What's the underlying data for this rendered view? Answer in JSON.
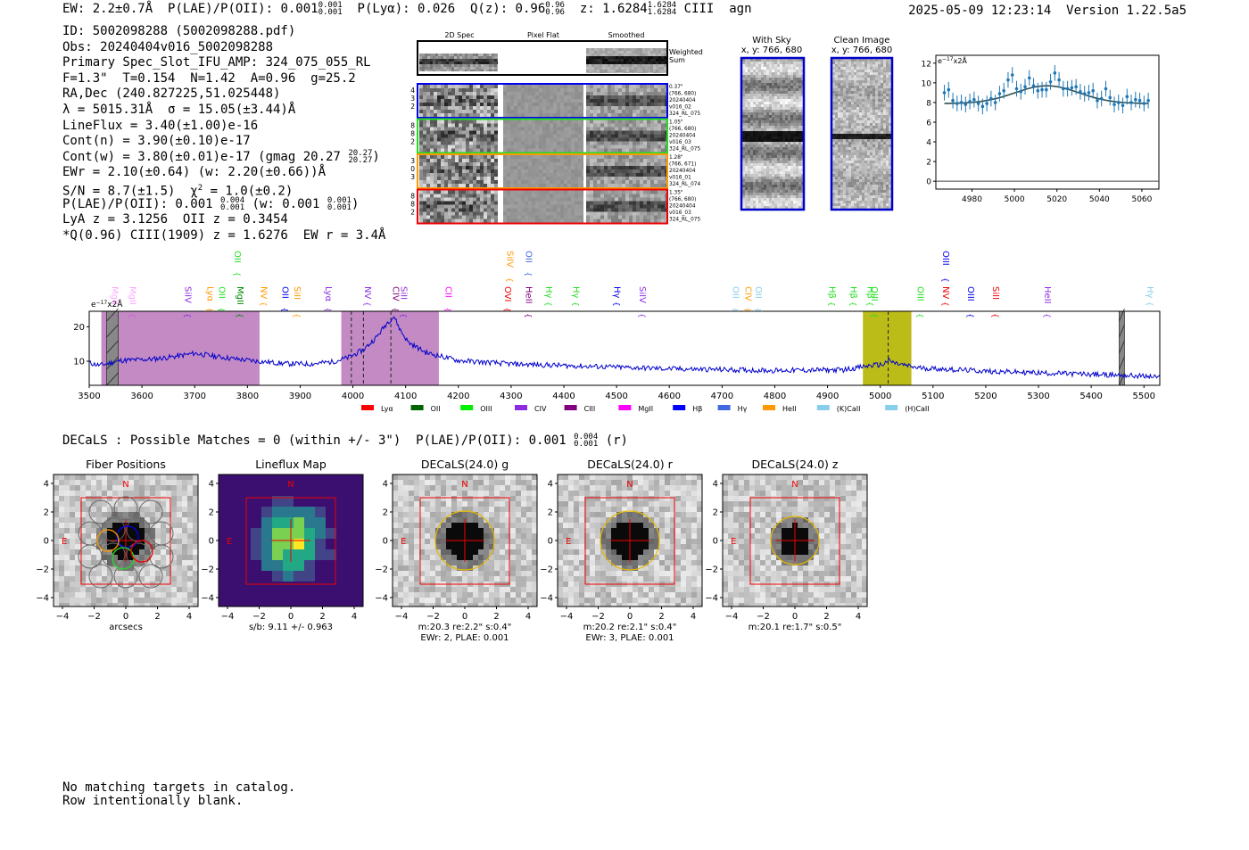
{
  "header": {
    "ew": "EW: 2.2±0.7Å",
    "plae_label": "P(LAE)/P(OII): 0.001",
    "plae_hi": "0.001",
    "plae_lo": "0.001",
    "plya": "P(Lyα): 0.026",
    "q_label": "Q(z): 0.96",
    "q_hi": "0.96",
    "q_lo": "0.96",
    "z_label": "z: 1.6284",
    "z_hi": "1.6284",
    "z_lo": "1.6284",
    "line_type": "CIII",
    "classification": "agn",
    "timestamp": "2025-05-09 12:23:14",
    "version": "Version 1.22.5a5"
  },
  "info": {
    "id": "ID: 5002098288 (5002098288.pdf)",
    "obs": "Obs: 20240404v016_5002098288",
    "primary": "Primary Spec_Slot_IFU_AMP: 324_075_055_RL",
    "fwhm": "F=1.3\"  T=0.154  N=1.42  A=0.96  g=25.2",
    "radec": "RA,Dec (240.827225,51.025448)",
    "lambda": "λ = 5015.31Å  σ = 15.05(±3.44)Å",
    "lineflux": "LineFlux = 3.40(±1.00)e-16",
    "contn": "Cont(n) = 3.90(±0.10)e-17",
    "contw": "Cont(w) = 3.80(±0.01)e-17 (gmag 20.27",
    "gmag_hi": "20.27",
    "gmag_lo": "20.27",
    "contw_close": ")",
    "ewr": "EWr = 2.10(±0.64) (w: 2.20(±0.66))Å",
    "sn": "S/N = 8.7(±1.5)  χ",
    "chi_sup": "2",
    "chi_val": " = 1.0(±0.2)",
    "plae_a": "P(LAE)/P(OII): 0.001",
    "plae_a_hi": "0.004",
    "plae_a_lo": "0.001",
    "plae_w": " (w: 0.001",
    "plae_w_hi": "0.001",
    "plae_w_lo": "0.001",
    "plae_close": ")",
    "lya": "LyA z = 3.1256  OII z = 0.3454",
    "ciii": "*Q(0.96) CIII(1909) z = 1.6276  EW r = 3.4Å"
  },
  "cutouts": {
    "col_headers": [
      "2D Spec",
      "Pixel Flat",
      "Smoothed"
    ],
    "weighted_label_1": "Weighted",
    "weighted_label_2": "Sum",
    "rows": [
      {
        "color": "#0000ee",
        "left": [
          "0.44",
          "1.43",
          "262"
        ],
        "right": [
          "0.37\"",
          "(766, 680)",
          "20240404",
          "v016_02",
          "324_RL_075"
        ]
      },
      {
        "color": "#22dd22",
        "left": [
          "0.18",
          "1.28",
          "262"
        ],
        "right": [
          "1.05\"",
          "(766, 680)",
          "20240404",
          "v016_03",
          "324_RL_075"
        ]
      },
      {
        "color": "#ff9900",
        "left": [
          "0.13",
          "0.90",
          "263"
        ],
        "right": [
          "1.28\"",
          "(766, 671)",
          "20240404",
          "v016_01",
          "324_RL_074"
        ]
      },
      {
        "color": "#ee0000",
        "left": [
          "0.08",
          "1.68",
          "262"
        ],
        "right": [
          "1.35\"",
          "(766, 680)",
          "20240404",
          "v016_03",
          "324_RL_075"
        ]
      }
    ]
  },
  "sky": {
    "with_sky_title": "With Sky",
    "with_sky_xy": "x, y: 766, 680",
    "clean_title": "Clean Image",
    "clean_xy": "x, y: 766, 680"
  },
  "fit_plot": {
    "unit": "e",
    "unit_exp": "−17",
    "unit_tail": "x2Å",
    "xticks": [
      "4980",
      "5000",
      "5020",
      "5040",
      "5060"
    ],
    "yticks": [
      "0",
      "2",
      "4",
      "6",
      "8",
      "10",
      "12"
    ]
  },
  "chart_data": [
    {
      "type": "scatter",
      "title": "",
      "xlabel": "",
      "ylabel": "e-17x2Å",
      "xlim": [
        4963,
        5068
      ],
      "ylim": [
        -0.8,
        12.8
      ],
      "points_x": [
        4967,
        4969,
        4971,
        4973,
        4975,
        4977,
        4979,
        4981,
        4983,
        4985,
        4987,
        4989,
        4991,
        4993,
        4995,
        4997,
        4999,
        5001,
        5003,
        5005,
        5007,
        5009,
        5011,
        5013,
        5015,
        5017,
        5019,
        5021,
        5023,
        5025,
        5027,
        5029,
        5031,
        5033,
        5035,
        5037,
        5039,
        5041,
        5043,
        5045,
        5047,
        5049,
        5051,
        5053,
        5055,
        5057,
        5059,
        5061,
        5063
      ],
      "points_y": [
        9.0,
        9.3,
        8.2,
        7.9,
        8.0,
        7.8,
        8.1,
        8.3,
        7.9,
        7.6,
        7.9,
        8.4,
        8.0,
        8.9,
        9.2,
        10.3,
        10.8,
        9.4,
        9.1,
        9.6,
        10.5,
        9.7,
        9.2,
        9.3,
        9.3,
        10.1,
        11.0,
        10.3,
        9.4,
        9.4,
        9.5,
        9.6,
        9.1,
        8.9,
        9.0,
        9.2,
        8.2,
        8.4,
        9.4,
        8.5,
        7.8,
        8.0,
        7.7,
        8.6,
        8.0,
        8.3,
        8.2,
        7.9,
        8.2
      ],
      "errors": 0.8,
      "model": {
        "continuum": 7.9,
        "amplitude": 1.8,
        "center": 5015.31,
        "sigma": 15.05
      },
      "zero_line": true
    },
    {
      "type": "line",
      "title": "",
      "xlabel": "",
      "ylabel": "e-17x2Å",
      "xlim": [
        3500,
        5530
      ],
      "ylim": [
        3,
        24.5
      ],
      "xticks": [
        3500,
        3600,
        3700,
        3800,
        3900,
        4000,
        4100,
        4200,
        4300,
        4400,
        4500,
        4600,
        4700,
        4800,
        4900,
        5000,
        5100,
        5200,
        5300,
        5400,
        5500
      ],
      "yticks": [
        10,
        20
      ],
      "unit": "e",
      "unit_exp": "−17",
      "unit_tail": "x2Å",
      "spectrum_shape": [
        [
          3500,
          9.5
        ],
        [
          3520,
          8.8
        ],
        [
          3560,
          10.2
        ],
        [
          3620,
          10.6
        ],
        [
          3660,
          11.3
        ],
        [
          3700,
          12.3
        ],
        [
          3740,
          11.4
        ],
        [
          3780,
          10.6
        ],
        [
          3820,
          10.0
        ],
        [
          3870,
          9.3
        ],
        [
          3920,
          9.2
        ],
        [
          3960,
          9.8
        ],
        [
          3990,
          11.0
        ],
        [
          4020,
          13.3
        ],
        [
          4045,
          17.0
        ],
        [
          4065,
          21.2
        ],
        [
          4078,
          23.0
        ],
        [
          4090,
          19.0
        ],
        [
          4105,
          15.5
        ],
        [
          4140,
          12.4
        ],
        [
          4200,
          10.2
        ],
        [
          4300,
          9.2
        ],
        [
          4450,
          8.5
        ],
        [
          4600,
          7.8
        ],
        [
          4800,
          7.3
        ],
        [
          4930,
          7.5
        ],
        [
          4985,
          8.8
        ],
        [
          5005,
          9.0
        ],
        [
          5015,
          10.2
        ],
        [
          5030,
          9.3
        ],
        [
          5070,
          8.1
        ],
        [
          5200,
          7.1
        ],
        [
          5350,
          6.4
        ],
        [
          5450,
          6.0
        ],
        [
          5530,
          5.4
        ]
      ],
      "shaded_regions": [
        {
          "x0": 3523,
          "x1": 3823,
          "color": "#9b3c9b",
          "alpha": 0.6
        },
        {
          "x0": 3978,
          "x1": 4163,
          "color": "#9b3c9b",
          "alpha": 0.6
        },
        {
          "x0": 4967,
          "x1": 5059,
          "color": "#b5b500",
          "alpha": 0.9
        }
      ],
      "masked_regions": [
        [
          3533,
          3555
        ],
        [
          5453,
          5463
        ]
      ],
      "dashed_lines": [
        3997,
        4020,
        4072,
        5015
      ],
      "line_markers": [
        {
          "label": "MgII",
          "x": 3537,
          "color": "#ff00ff",
          "row": 1,
          "alpha": 0.35
        },
        {
          "label": "MgII",
          "x": 3571,
          "color": "#ff00ff",
          "row": 1,
          "alpha": 0.35
        },
        {
          "label": "SiIV",
          "x": 3676,
          "color": "#8a2be2",
          "row": 1
        },
        {
          "label": "Lyα",
          "x": 3718,
          "color": "#ff9900",
          "row": 1
        },
        {
          "label": "OII",
          "x": 3740,
          "color": "#22dd22",
          "row": 1
        },
        {
          "label": "MgII",
          "x": 3775,
          "color": "#008800",
          "row": 1
        },
        {
          "label": "NV",
          "x": 3820,
          "color": "#ff9900",
          "row": 1
        },
        {
          "label": "OII",
          "x": 3770,
          "color": "#22dd22",
          "row": 0
        },
        {
          "label": "OII",
          "x": 3860,
          "color": "#0000ee",
          "row": 1
        },
        {
          "label": "SiII",
          "x": 3883,
          "color": "#ff9900",
          "row": 1
        },
        {
          "label": "Lyα",
          "x": 3942,
          "color": "#8a2be2",
          "row": 1
        },
        {
          "label": "NV",
          "x": 4017,
          "color": "#8a2be2",
          "row": 1
        },
        {
          "label": "CIV",
          "x": 4070,
          "color": "#800080",
          "row": 1
        },
        {
          "label": "SiII",
          "x": 4085,
          "color": "#8a2be2",
          "row": 1
        },
        {
          "label": "CII",
          "x": 4170,
          "color": "#ff00ff",
          "row": 1
        },
        {
          "label": "OVI",
          "x": 4282,
          "color": "#ee0000",
          "row": 1
        },
        {
          "label": "SiIV",
          "x": 4287,
          "color": "#ff9900",
          "row": 0
        },
        {
          "label": "OII",
          "x": 4322,
          "color": "#4169e1",
          "row": 0
        },
        {
          "label": "HeII",
          "x": 4322,
          "color": "#800080",
          "row": 1
        },
        {
          "label": "Hγ",
          "x": 4360,
          "color": "#22dd22",
          "row": 1
        },
        {
          "label": "Hγ",
          "x": 4412,
          "color": "#22dd22",
          "row": 1
        },
        {
          "label": "Hγ",
          "x": 4490,
          "color": "#0000ee",
          "row": 1
        },
        {
          "label": "SiIV",
          "x": 4538,
          "color": "#8a2be2",
          "row": 1
        },
        {
          "label": "OII",
          "x": 4715,
          "color": "#87ceeb",
          "row": 1
        },
        {
          "label": "CIV",
          "x": 4738,
          "color": "#ff9900",
          "row": 1
        },
        {
          "label": "OII",
          "x": 4758,
          "color": "#87ceeb",
          "row": 1
        },
        {
          "label": "Hβ",
          "x": 4897,
          "color": "#22dd22",
          "row": 1
        },
        {
          "label": "Hβ",
          "x": 4938,
          "color": "#22dd22",
          "row": 1
        },
        {
          "label": "Hβ",
          "x": 4970,
          "color": "#22dd22",
          "row": 1
        },
        {
          "label": "OIII",
          "x": 4978,
          "color": "#22dd22",
          "row": 1
        },
        {
          "label": "OIII",
          "x": 5065,
          "color": "#22dd22",
          "row": 1
        },
        {
          "label": "NV",
          "x": 5113,
          "color": "#ee0000",
          "row": 1
        },
        {
          "label": "OIII",
          "x": 5160,
          "color": "#0000ee",
          "row": 1
        },
        {
          "label": "OIII",
          "x": 5113,
          "color": "#0000ee",
          "row": 0
        },
        {
          "label": "SiII",
          "x": 5208,
          "color": "#ee0000",
          "row": 1
        },
        {
          "label": "HeII",
          "x": 5306,
          "color": "#8a2be2",
          "row": 1
        },
        {
          "label": "Hγ",
          "x": 5500,
          "color": "#87ceeb",
          "row": 1
        }
      ],
      "legend": [
        {
          "label": "Lyα",
          "color": "#ff0000"
        },
        {
          "label": "OII",
          "color": "#006400"
        },
        {
          "label": "OIII",
          "color": "#00ee00"
        },
        {
          "label": "CIV",
          "color": "#8a2be2"
        },
        {
          "label": "CIII",
          "color": "#800080"
        },
        {
          "label": "MgII",
          "color": "#ff00ff"
        },
        {
          "label": "Hβ",
          "color": "#0000ff"
        },
        {
          "label": "Hγ",
          "color": "#4169e1"
        },
        {
          "label": "HeII",
          "color": "#ff9900"
        },
        {
          "label": "(K)CaII",
          "color": "#87ceeb"
        },
        {
          "label": "(H)CaII",
          "color": "#87ceeb"
        }
      ]
    }
  ],
  "decals": {
    "summary": "DECaLS : Possible Matches = 0 (within +/- 3\")  P(LAE)/P(OII): 0.001",
    "plae_hi": "0.004",
    "plae_lo": "0.001",
    "band": "(r)",
    "stamps": [
      {
        "title": "Fiber Positions",
        "caption1": "arcsecs",
        "caption2": "",
        "kind": "fiber"
      },
      {
        "title": "Lineflux Map",
        "caption1": "s/b: 9.11 +/- 0.963",
        "caption2": "",
        "kind": "lineflux"
      },
      {
        "title": "DECaLS(24.0) g",
        "caption1": "m:20.3  re:2.2\"  s:0.4\"",
        "caption2": "EWr: 2, PLAE: 0.001",
        "kind": "g"
      },
      {
        "title": "DECaLS(24.0) r",
        "caption1": "m:20.2  re:2.1\"  s:0.4\"",
        "caption2": "EWr: 3, PLAE: 0.001",
        "kind": "r"
      },
      {
        "title": "DECaLS(24.0) z",
        "caption1": "m:20.1  re:1.7\"  s:0.5\"",
        "caption2": "",
        "kind": "z"
      }
    ],
    "tick_labels": [
      "−4",
      "−2",
      "0",
      "2",
      "4"
    ],
    "north": "N",
    "east": "E"
  },
  "bottom": {
    "line1": "No matching targets in catalog.",
    "line2": "Row intentionally blank."
  }
}
